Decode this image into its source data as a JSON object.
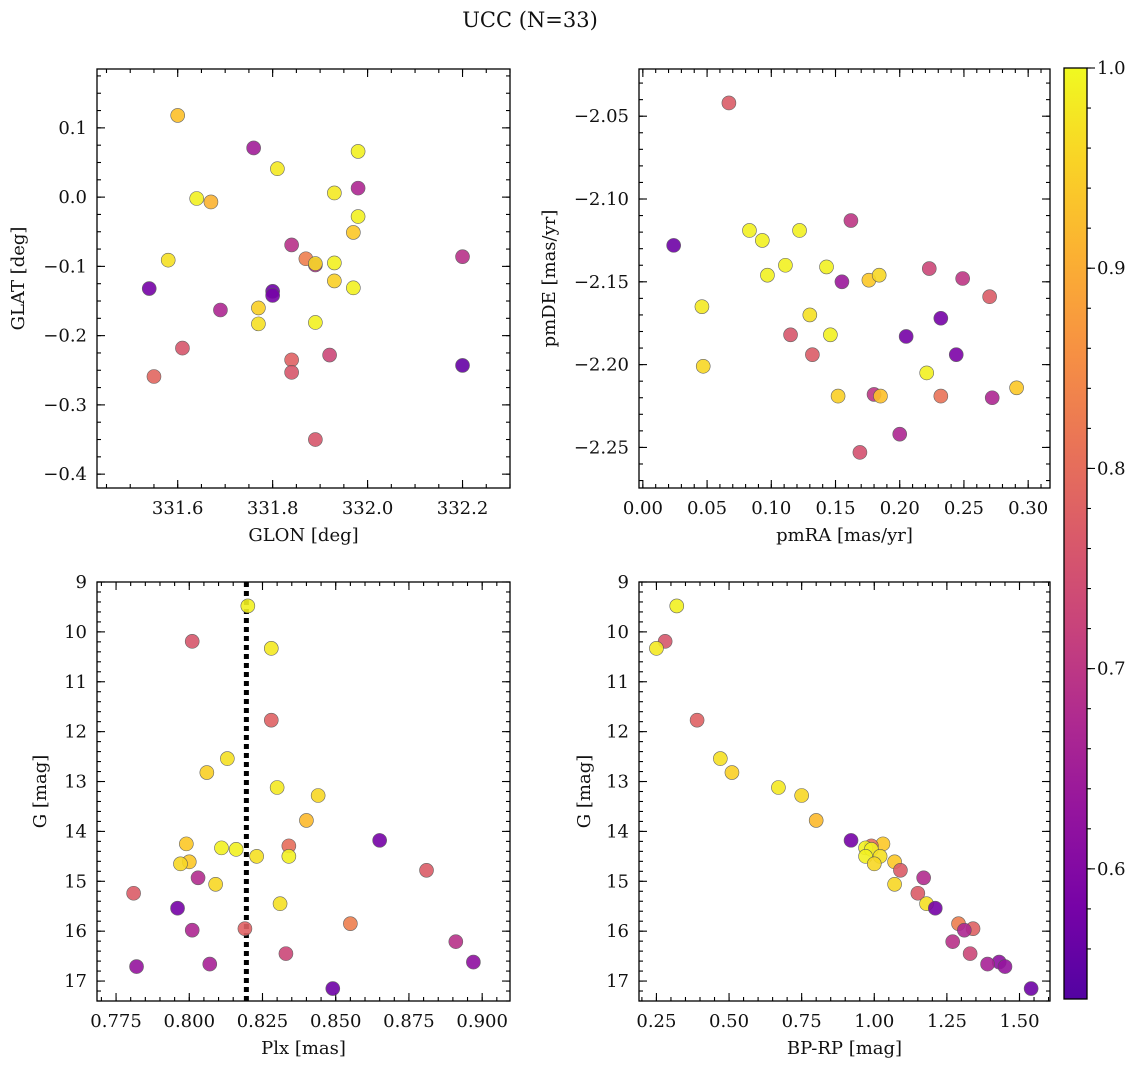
{
  "title": "UCC (N=33)",
  "colorbar": {
    "range": [
      0.535,
      1.0
    ],
    "ticks": [
      0.6,
      0.7,
      0.8,
      0.9,
      1.0
    ],
    "tick_labels": [
      "0.6",
      "0.7",
      "0.8",
      "0.9",
      "1.0"
    ],
    "colormap": "plasma"
  },
  "chart_data": [
    {
      "type": "scatter",
      "xlabel": "GLON [deg]",
      "ylabel": "GLAT [deg]",
      "xlim": [
        331.43,
        332.3
      ],
      "ylim": [
        -0.42,
        0.185
      ],
      "xticks": [
        331.6,
        331.8,
        332.0,
        332.2
      ],
      "xtick_labels": [
        "331.6",
        "331.8",
        "332.0",
        "332.2"
      ],
      "yticks": [
        0.1,
        0.0,
        -0.1,
        -0.2,
        -0.3,
        -0.4
      ],
      "ytick_labels": [
        "0.1",
        "0.0",
        "−0.1",
        "−0.2",
        "−0.3",
        "−0.4"
      ],
      "points": [
        {
          "x": 331.6,
          "y": 0.118,
          "c": 0.93
        },
        {
          "x": 331.76,
          "y": 0.071,
          "c": 0.65
        },
        {
          "x": 331.81,
          "y": 0.041,
          "c": 0.98
        },
        {
          "x": 331.98,
          "y": 0.066,
          "c": 0.99
        },
        {
          "x": 331.64,
          "y": -0.002,
          "c": 0.99
        },
        {
          "x": 331.67,
          "y": -0.007,
          "c": 0.91
        },
        {
          "x": 331.93,
          "y": 0.006,
          "c": 0.98
        },
        {
          "x": 331.98,
          "y": 0.013,
          "c": 0.67
        },
        {
          "x": 331.98,
          "y": -0.028,
          "c": 0.99
        },
        {
          "x": 331.97,
          "y": -0.051,
          "c": 0.94
        },
        {
          "x": 331.84,
          "y": -0.069,
          "c": 0.69
        },
        {
          "x": 331.87,
          "y": -0.089,
          "c": 0.83
        },
        {
          "x": 331.58,
          "y": -0.091,
          "c": 0.97
        },
        {
          "x": 331.89,
          "y": -0.098,
          "c": 0.68
        },
        {
          "x": 331.89,
          "y": -0.096,
          "c": 0.96
        },
        {
          "x": 331.93,
          "y": -0.095,
          "c": 0.99
        },
        {
          "x": 332.2,
          "y": -0.086,
          "c": 0.69
        },
        {
          "x": 331.93,
          "y": -0.121,
          "c": 0.95
        },
        {
          "x": 331.54,
          "y": -0.132,
          "c": 0.58
        },
        {
          "x": 331.8,
          "y": -0.136,
          "c": 0.57
        },
        {
          "x": 331.8,
          "y": -0.142,
          "c": 0.58
        },
        {
          "x": 331.97,
          "y": -0.131,
          "c": 0.99
        },
        {
          "x": 331.77,
          "y": -0.16,
          "c": 0.95
        },
        {
          "x": 331.69,
          "y": -0.163,
          "c": 0.67
        },
        {
          "x": 331.77,
          "y": -0.183,
          "c": 0.97
        },
        {
          "x": 331.89,
          "y": -0.181,
          "c": 0.99
        },
        {
          "x": 331.61,
          "y": -0.218,
          "c": 0.76
        },
        {
          "x": 331.92,
          "y": -0.228,
          "c": 0.73
        },
        {
          "x": 331.84,
          "y": -0.235,
          "c": 0.78
        },
        {
          "x": 332.2,
          "y": -0.243,
          "c": 0.56
        },
        {
          "x": 331.55,
          "y": -0.259,
          "c": 0.79
        },
        {
          "x": 331.84,
          "y": -0.253,
          "c": 0.76
        },
        {
          "x": 331.89,
          "y": -0.35,
          "c": 0.76
        }
      ]
    },
    {
      "type": "scatter",
      "xlabel": "pmRA [mas/yr]",
      "ylabel": "pmDE [mas/yr]",
      "xlim": [
        -0.003,
        0.317
      ],
      "ylim": [
        -2.2745,
        -2.0215
      ],
      "xticks": [
        0.0,
        0.05,
        0.1,
        0.15,
        0.2,
        0.25,
        0.3
      ],
      "xtick_labels": [
        "0.00",
        "0.05",
        "0.10",
        "0.15",
        "0.20",
        "0.25",
        "0.30"
      ],
      "yticks": [
        -2.05,
        -2.1,
        -2.15,
        -2.2,
        -2.25
      ],
      "ytick_labels": [
        "−2.05",
        "−2.10",
        "−2.15",
        "−2.20",
        "−2.25"
      ],
      "points": [
        {
          "x": 0.067,
          "y": -2.042,
          "c": 0.77
        },
        {
          "x": 0.024,
          "y": -2.128,
          "c": 0.57
        },
        {
          "x": 0.083,
          "y": -2.119,
          "c": 0.99
        },
        {
          "x": 0.093,
          "y": -2.125,
          "c": 0.99
        },
        {
          "x": 0.122,
          "y": -2.119,
          "c": 0.99
        },
        {
          "x": 0.162,
          "y": -2.113,
          "c": 0.7
        },
        {
          "x": 0.097,
          "y": -2.146,
          "c": 0.99
        },
        {
          "x": 0.111,
          "y": -2.14,
          "c": 0.99
        },
        {
          "x": 0.143,
          "y": -2.141,
          "c": 0.99
        },
        {
          "x": 0.155,
          "y": -2.15,
          "c": 0.64
        },
        {
          "x": 0.176,
          "y": -2.149,
          "c": 0.94
        },
        {
          "x": 0.184,
          "y": -2.146,
          "c": 0.96
        },
        {
          "x": 0.223,
          "y": -2.142,
          "c": 0.73
        },
        {
          "x": 0.249,
          "y": -2.148,
          "c": 0.7
        },
        {
          "x": 0.27,
          "y": -2.159,
          "c": 0.77
        },
        {
          "x": 0.046,
          "y": -2.165,
          "c": 0.98
        },
        {
          "x": 0.13,
          "y": -2.17,
          "c": 0.97
        },
        {
          "x": 0.232,
          "y": -2.172,
          "c": 0.58
        },
        {
          "x": 0.115,
          "y": -2.182,
          "c": 0.76
        },
        {
          "x": 0.146,
          "y": -2.182,
          "c": 0.99
        },
        {
          "x": 0.205,
          "y": -2.183,
          "c": 0.58
        },
        {
          "x": 0.132,
          "y": -2.194,
          "c": 0.77
        },
        {
          "x": 0.244,
          "y": -2.194,
          "c": 0.59
        },
        {
          "x": 0.047,
          "y": -2.201,
          "c": 0.96
        },
        {
          "x": 0.221,
          "y": -2.205,
          "c": 0.99
        },
        {
          "x": 0.291,
          "y": -2.214,
          "c": 0.94
        },
        {
          "x": 0.152,
          "y": -2.219,
          "c": 0.95
        },
        {
          "x": 0.18,
          "y": -2.218,
          "c": 0.7
        },
        {
          "x": 0.185,
          "y": -2.219,
          "c": 0.93
        },
        {
          "x": 0.232,
          "y": -2.219,
          "c": 0.81
        },
        {
          "x": 0.272,
          "y": -2.22,
          "c": 0.67
        },
        {
          "x": 0.2,
          "y": -2.242,
          "c": 0.67
        },
        {
          "x": 0.169,
          "y": -2.253,
          "c": 0.75
        }
      ]
    },
    {
      "type": "scatter",
      "xlabel": "Plx [mas]",
      "ylabel": "G [mag]",
      "xlim": [
        0.7685,
        0.9095
      ],
      "ylim": [
        17.4,
        9.0
      ],
      "xticks": [
        0.775,
        0.8,
        0.825,
        0.85,
        0.875,
        0.9
      ],
      "xtick_labels": [
        "0.775",
        "0.800",
        "0.825",
        "0.850",
        "0.875",
        "0.900"
      ],
      "yticks": [
        9,
        10,
        11,
        12,
        13,
        14,
        15,
        16,
        17
      ],
      "ytick_labels": [
        "9",
        "10",
        "11",
        "12",
        "13",
        "14",
        "15",
        "16",
        "17"
      ],
      "vline": {
        "x": 0.8195
      },
      "points": [
        {
          "x": 0.82,
          "y": 9.48,
          "c": 0.99
        },
        {
          "x": 0.801,
          "y": 10.19,
          "c": 0.76
        },
        {
          "x": 0.828,
          "y": 10.33,
          "c": 0.98
        },
        {
          "x": 0.828,
          "y": 11.77,
          "c": 0.78
        },
        {
          "x": 0.813,
          "y": 12.54,
          "c": 0.97
        },
        {
          "x": 0.806,
          "y": 12.82,
          "c": 0.95
        },
        {
          "x": 0.83,
          "y": 13.12,
          "c": 0.98
        },
        {
          "x": 0.844,
          "y": 13.28,
          "c": 0.96
        },
        {
          "x": 0.84,
          "y": 13.78,
          "c": 0.92
        },
        {
          "x": 0.865,
          "y": 14.18,
          "c": 0.58
        },
        {
          "x": 0.799,
          "y": 14.25,
          "c": 0.94
        },
        {
          "x": 0.834,
          "y": 14.29,
          "c": 0.8
        },
        {
          "x": 0.811,
          "y": 14.33,
          "c": 0.99
        },
        {
          "x": 0.816,
          "y": 14.36,
          "c": 0.99
        },
        {
          "x": 0.823,
          "y": 14.5,
          "c": 0.97
        },
        {
          "x": 0.834,
          "y": 14.5,
          "c": 0.99
        },
        {
          "x": 0.8,
          "y": 14.61,
          "c": 0.94
        },
        {
          "x": 0.797,
          "y": 14.65,
          "c": 0.96
        },
        {
          "x": 0.881,
          "y": 14.78,
          "c": 0.77
        },
        {
          "x": 0.803,
          "y": 14.93,
          "c": 0.68
        },
        {
          "x": 0.809,
          "y": 15.06,
          "c": 0.96
        },
        {
          "x": 0.781,
          "y": 15.24,
          "c": 0.77
        },
        {
          "x": 0.831,
          "y": 15.45,
          "c": 0.97
        },
        {
          "x": 0.796,
          "y": 15.54,
          "c": 0.58
        },
        {
          "x": 0.855,
          "y": 15.85,
          "c": 0.83
        },
        {
          "x": 0.819,
          "y": 15.95,
          "c": 0.78
        },
        {
          "x": 0.801,
          "y": 15.98,
          "c": 0.67
        },
        {
          "x": 0.891,
          "y": 16.21,
          "c": 0.69
        },
        {
          "x": 0.833,
          "y": 16.45,
          "c": 0.73
        },
        {
          "x": 0.897,
          "y": 16.62,
          "c": 0.62
        },
        {
          "x": 0.807,
          "y": 16.66,
          "c": 0.66
        },
        {
          "x": 0.782,
          "y": 16.71,
          "c": 0.63
        },
        {
          "x": 0.849,
          "y": 17.15,
          "c": 0.57
        }
      ]
    },
    {
      "type": "scatter",
      "xlabel": "BP-RP [mag]",
      "ylabel": "G [mag]",
      "xlim": [
        0.19,
        1.605
      ],
      "ylim": [
        17.4,
        9.0
      ],
      "xticks": [
        0.25,
        0.5,
        0.75,
        1.0,
        1.25,
        1.5
      ],
      "xtick_labels": [
        "0.25",
        "0.50",
        "0.75",
        "1.00",
        "1.25",
        "1.50"
      ],
      "yticks": [
        9,
        10,
        11,
        12,
        13,
        14,
        15,
        16,
        17
      ],
      "ytick_labels": [
        "9",
        "10",
        "11",
        "12",
        "13",
        "14",
        "15",
        "16",
        "17"
      ],
      "points": [
        {
          "x": 0.32,
          "y": 9.48,
          "c": 0.99
        },
        {
          "x": 0.28,
          "y": 10.19,
          "c": 0.76
        },
        {
          "x": 0.25,
          "y": 10.33,
          "c": 0.98
        },
        {
          "x": 0.39,
          "y": 11.77,
          "c": 0.78
        },
        {
          "x": 0.47,
          "y": 12.54,
          "c": 0.97
        },
        {
          "x": 0.51,
          "y": 12.82,
          "c": 0.95
        },
        {
          "x": 0.67,
          "y": 13.12,
          "c": 0.98
        },
        {
          "x": 0.75,
          "y": 13.28,
          "c": 0.96
        },
        {
          "x": 0.8,
          "y": 13.78,
          "c": 0.92
        },
        {
          "x": 0.92,
          "y": 14.18,
          "c": 0.58
        },
        {
          "x": 1.03,
          "y": 14.25,
          "c": 0.94
        },
        {
          "x": 0.99,
          "y": 14.29,
          "c": 0.8
        },
        {
          "x": 0.97,
          "y": 14.33,
          "c": 0.99
        },
        {
          "x": 0.99,
          "y": 14.36,
          "c": 0.99
        },
        {
          "x": 1.02,
          "y": 14.5,
          "c": 0.97
        },
        {
          "x": 0.97,
          "y": 14.5,
          "c": 0.99
        },
        {
          "x": 1.07,
          "y": 14.61,
          "c": 0.94
        },
        {
          "x": 1.0,
          "y": 14.65,
          "c": 0.96
        },
        {
          "x": 1.09,
          "y": 14.78,
          "c": 0.77
        },
        {
          "x": 1.17,
          "y": 14.93,
          "c": 0.68
        },
        {
          "x": 1.07,
          "y": 15.06,
          "c": 0.96
        },
        {
          "x": 1.15,
          "y": 15.24,
          "c": 0.77
        },
        {
          "x": 1.18,
          "y": 15.45,
          "c": 0.97
        },
        {
          "x": 1.21,
          "y": 15.54,
          "c": 0.58
        },
        {
          "x": 1.29,
          "y": 15.85,
          "c": 0.83
        },
        {
          "x": 1.34,
          "y": 15.95,
          "c": 0.78
        },
        {
          "x": 1.31,
          "y": 15.98,
          "c": 0.67
        },
        {
          "x": 1.27,
          "y": 16.21,
          "c": 0.69
        },
        {
          "x": 1.33,
          "y": 16.45,
          "c": 0.73
        },
        {
          "x": 1.43,
          "y": 16.62,
          "c": 0.62
        },
        {
          "x": 1.39,
          "y": 16.66,
          "c": 0.66
        },
        {
          "x": 1.45,
          "y": 16.71,
          "c": 0.63
        },
        {
          "x": 1.54,
          "y": 17.15,
          "c": 0.57
        }
      ]
    }
  ]
}
